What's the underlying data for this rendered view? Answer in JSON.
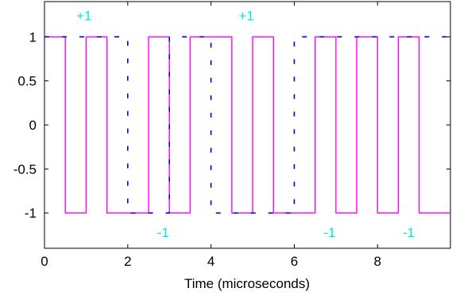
{
  "chart_data": {
    "type": "line",
    "xlabel": "Time (microseconds)",
    "ylabel": "",
    "xlim": [
      0,
      9.75
    ],
    "ylim": [
      -1.4,
      1.4
    ],
    "xticks": [
      0,
      2,
      4,
      6,
      8
    ],
    "yticks": [
      1,
      0.5,
      0,
      -0.5,
      -1
    ],
    "xtick_labels": [
      "0",
      "2",
      "4",
      "6",
      "8"
    ],
    "ytick_labels": [
      "1",
      "0.5",
      "0",
      "-0.5",
      "-1"
    ],
    "grid": false,
    "series": [
      {
        "color": "#ff00ff",
        "style": "solid",
        "x": [
          0,
          0.5,
          0.5,
          1.0,
          1.0,
          1.5,
          1.5,
          2.5,
          2.5,
          3.0,
          3.0,
          3.5,
          3.5,
          4.5,
          4.5,
          5.0,
          5.0,
          5.5,
          5.5,
          6.5,
          6.5,
          7.0,
          7.0,
          7.5,
          7.5,
          8.0,
          8.0,
          8.5,
          8.5,
          9.0,
          9.0,
          9.75
        ],
        "y": [
          1,
          1,
          -1,
          -1,
          1,
          1,
          -1,
          -1,
          1,
          1,
          -1,
          -1,
          1,
          1,
          -1,
          -1,
          1,
          1,
          -1,
          -1,
          1,
          1,
          -1,
          -1,
          1,
          1,
          -1,
          -1,
          1,
          1,
          -1,
          -1
        ]
      },
      {
        "color": "#0000cc",
        "style": "dashed",
        "x": [
          0,
          2,
          2,
          3,
          3,
          4,
          4,
          6,
          6,
          9.75
        ],
        "y": [
          1,
          1,
          -1,
          -1,
          1,
          1,
          -1,
          -1,
          1,
          1
        ]
      }
    ],
    "annotations": [
      {
        "text": "+1",
        "x": 0.95,
        "y": 1.24,
        "color": "#00e5e5"
      },
      {
        "text": "-1",
        "x": 2.85,
        "y": -1.22,
        "color": "#00e5e5"
      },
      {
        "text": "+1",
        "x": 4.85,
        "y": 1.24,
        "color": "#00e5e5"
      },
      {
        "text": "-1",
        "x": 6.85,
        "y": -1.22,
        "color": "#00e5e5"
      },
      {
        "text": "-1",
        "x": 8.75,
        "y": -1.22,
        "color": "#00e5e5"
      }
    ]
  }
}
